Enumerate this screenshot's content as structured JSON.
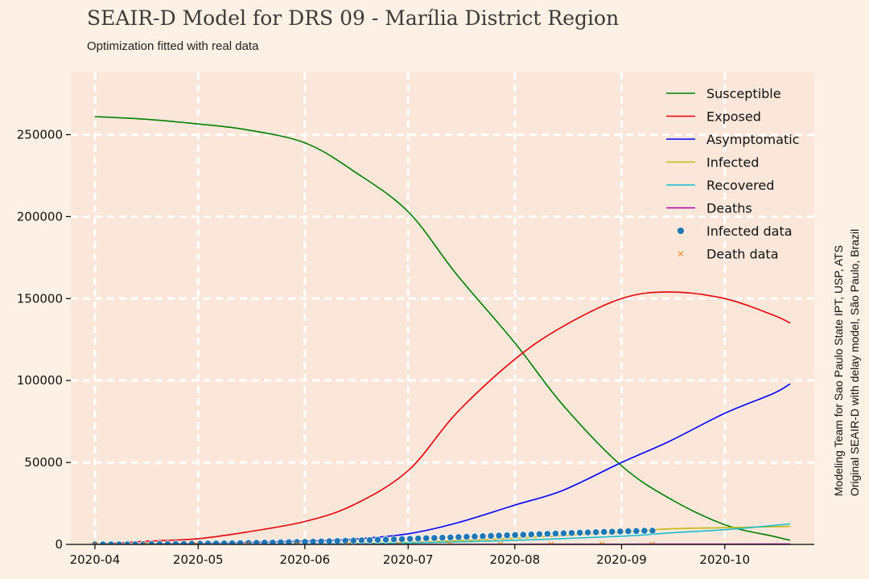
{
  "chart_data": {
    "type": "line",
    "title": "SEAIR-D Model for DRS 09 - Marília District Region",
    "subtitle": "Optimization fitted with real data",
    "side_note": [
      "Modeling Team for Sao Paulo State IPT, USP, ATS",
      "Original SEAIR-D with delay model, São Paulo, Brazil"
    ],
    "xlabel": "",
    "ylabel": "",
    "x_ticks": [
      "2020-04",
      "2020-05",
      "2020-06",
      "2020-07",
      "2020-08",
      "2020-09",
      "2020-10"
    ],
    "y_ticks": [
      0,
      50000,
      100000,
      150000,
      200000,
      250000
    ],
    "xlim": [
      "2020-03-25",
      "2020-10-27"
    ],
    "ylim": [
      0,
      288000
    ],
    "grid": true,
    "legend_position": "top-right",
    "series": [
      {
        "name": "Susceptible",
        "color": "#008000",
        "x": [
          "2020-04-01",
          "2020-04-15",
          "2020-05-01",
          "2020-05-15",
          "2020-06-01",
          "2020-06-15",
          "2020-07-01",
          "2020-07-15",
          "2020-08-01",
          "2020-08-15",
          "2020-09-01",
          "2020-09-15",
          "2020-10-01",
          "2020-10-15",
          "2020-10-20"
        ],
        "y": [
          261000,
          259500,
          256500,
          253000,
          245000,
          228000,
          203000,
          165000,
          123000,
          85000,
          48000,
          28000,
          12000,
          5000,
          2500
        ]
      },
      {
        "name": "Exposed",
        "color": "#e8000b",
        "x": [
          "2020-04-01",
          "2020-04-15",
          "2020-05-01",
          "2020-05-15",
          "2020-06-01",
          "2020-06-15",
          "2020-07-01",
          "2020-07-15",
          "2020-08-01",
          "2020-08-15",
          "2020-09-01",
          "2020-09-15",
          "2020-10-01",
          "2020-10-15",
          "2020-10-20"
        ],
        "y": [
          0,
          1800,
          3500,
          7500,
          14000,
          24000,
          45000,
          80000,
          113000,
          133000,
          150000,
          154000,
          150000,
          140000,
          135000
        ]
      },
      {
        "name": "Asymptomatic",
        "color": "#0000ff",
        "x": [
          "2020-04-01",
          "2020-05-01",
          "2020-06-01",
          "2020-06-15",
          "2020-07-01",
          "2020-07-15",
          "2020-08-01",
          "2020-08-15",
          "2020-09-01",
          "2020-09-15",
          "2020-10-01",
          "2020-10-15",
          "2020-10-20"
        ],
        "y": [
          0,
          600,
          2000,
          3200,
          6500,
          13000,
          24000,
          33000,
          50000,
          63000,
          80000,
          92000,
          98000
        ]
      },
      {
        "name": "Infected",
        "color": "#c4b812",
        "x": [
          "2020-04-01",
          "2020-06-01",
          "2020-07-01",
          "2020-08-01",
          "2020-09-01",
          "2020-09-15",
          "2020-10-01",
          "2020-10-20"
        ],
        "y": [
          0,
          300,
          1200,
          3800,
          7500,
          9500,
          10200,
          11000
        ]
      },
      {
        "name": "Recovered",
        "color": "#17becf",
        "x": [
          "2020-04-01",
          "2020-06-01",
          "2020-07-01",
          "2020-08-01",
          "2020-09-01",
          "2020-09-15",
          "2020-10-01",
          "2020-10-20"
        ],
        "y": [
          0,
          200,
          800,
          2500,
          5000,
          7000,
          9000,
          12500
        ]
      },
      {
        "name": "Deaths",
        "color": "#b000b5",
        "x": [
          "2020-04-01",
          "2020-07-01",
          "2020-08-01",
          "2020-09-01",
          "2020-10-01",
          "2020-10-20"
        ],
        "y": [
          0,
          20,
          60,
          110,
          170,
          220
        ]
      }
    ],
    "scatter_series": [
      {
        "name": "Infected data",
        "color": "#1f77b4",
        "marker": "circle",
        "x_start": "2020-04-01",
        "x_end": "2020-09-10",
        "y": [
          0,
          10,
          20,
          30,
          50,
          80,
          120,
          160,
          200,
          250,
          300,
          350,
          400,
          460,
          520,
          580,
          650,
          720,
          800,
          880,
          960,
          1050,
          1150,
          1250,
          1360,
          1470,
          1580,
          1700,
          1820,
          1950,
          2080,
          2210,
          2350,
          2490,
          2630,
          2780,
          2930,
          3090,
          3250,
          3410,
          3580,
          3750,
          3920,
          4090,
          4270,
          4450,
          4630,
          4810,
          5000,
          5180,
          5360,
          5540,
          5720,
          5900,
          6080,
          6260,
          6440,
          6620,
          6800,
          6970,
          7140,
          7300,
          7460,
          7620,
          7770,
          7910,
          8050,
          8180,
          8300,
          8400
        ]
      },
      {
        "name": "Death data",
        "color": "#ff7f0e",
        "marker": "x",
        "x_start": "2020-04-01",
        "x_end": "2020-09-10",
        "y": [
          0,
          2,
          5,
          10,
          20,
          35,
          55,
          80,
          110,
          140,
          170,
          200
        ]
      }
    ]
  }
}
